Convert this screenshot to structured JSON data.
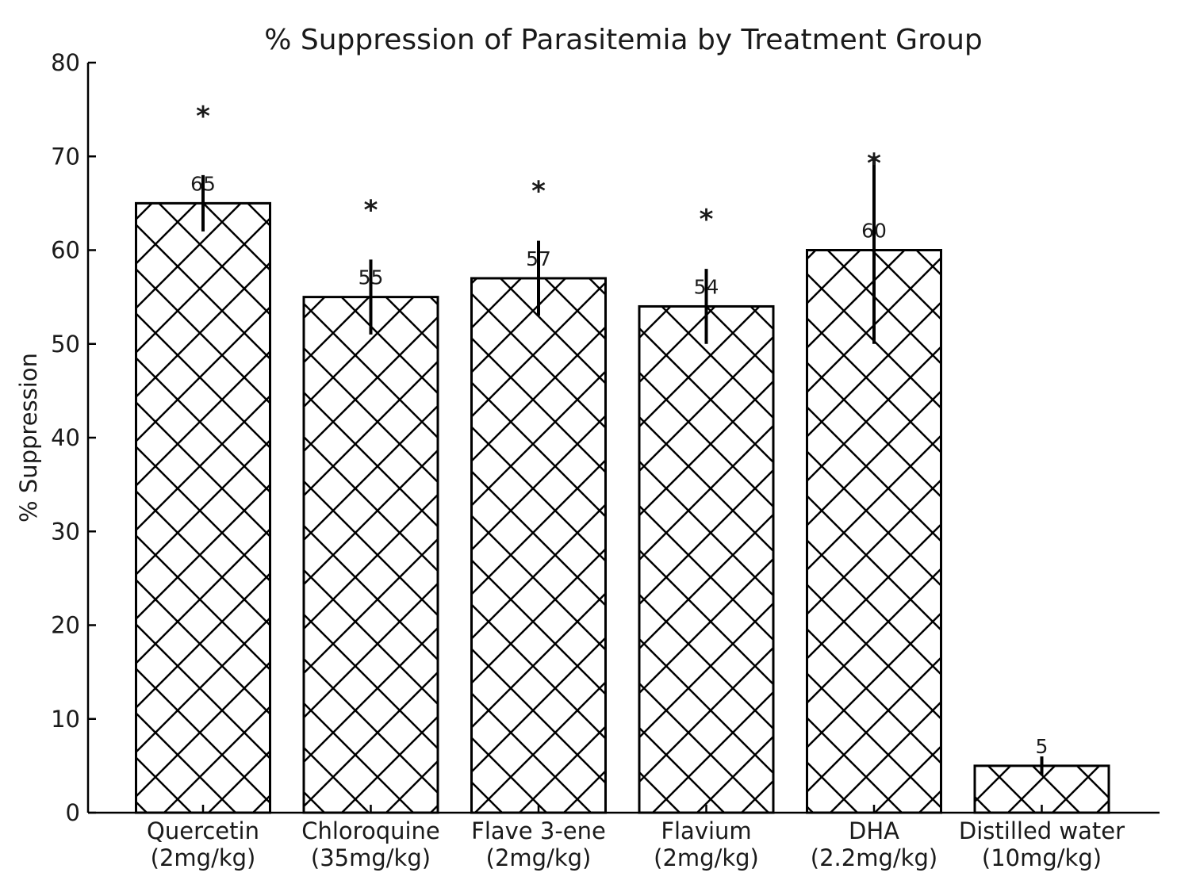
{
  "chart_data": {
    "type": "bar",
    "title": "% Suppression of Parasitemia by Treatment Group",
    "ylabel": "% Suppression",
    "xlabel": "",
    "ylim": [
      0,
      80
    ],
    "yticks": [
      0,
      10,
      20,
      30,
      40,
      50,
      60,
      70,
      80
    ],
    "categories": [
      [
        "Quercetin",
        "(2mg/kg)"
      ],
      [
        "Chloroquine",
        "(35mg/kg)"
      ],
      [
        "Flave 3-ene",
        "(2mg/kg)"
      ],
      [
        "Flavium",
        "(2mg/kg)"
      ],
      [
        "DHA",
        "(2.2mg/kg)"
      ],
      [
        "Distilled water",
        "(10mg/kg)"
      ]
    ],
    "values": [
      65,
      55,
      57,
      54,
      60,
      5
    ],
    "errors": [
      3,
      4,
      4,
      4,
      10,
      1
    ],
    "data_labels": [
      "65",
      "55",
      "57",
      "54",
      "60",
      "5"
    ],
    "significance": [
      "*",
      "*",
      "*",
      "*",
      "*",
      ""
    ],
    "significance_y": [
      75,
      65,
      67,
      64,
      70,
      null
    ],
    "bar_fill": "#ffffff",
    "bar_edge": "#000000",
    "hatch": "crosshatch",
    "grid": false,
    "legend": null
  }
}
